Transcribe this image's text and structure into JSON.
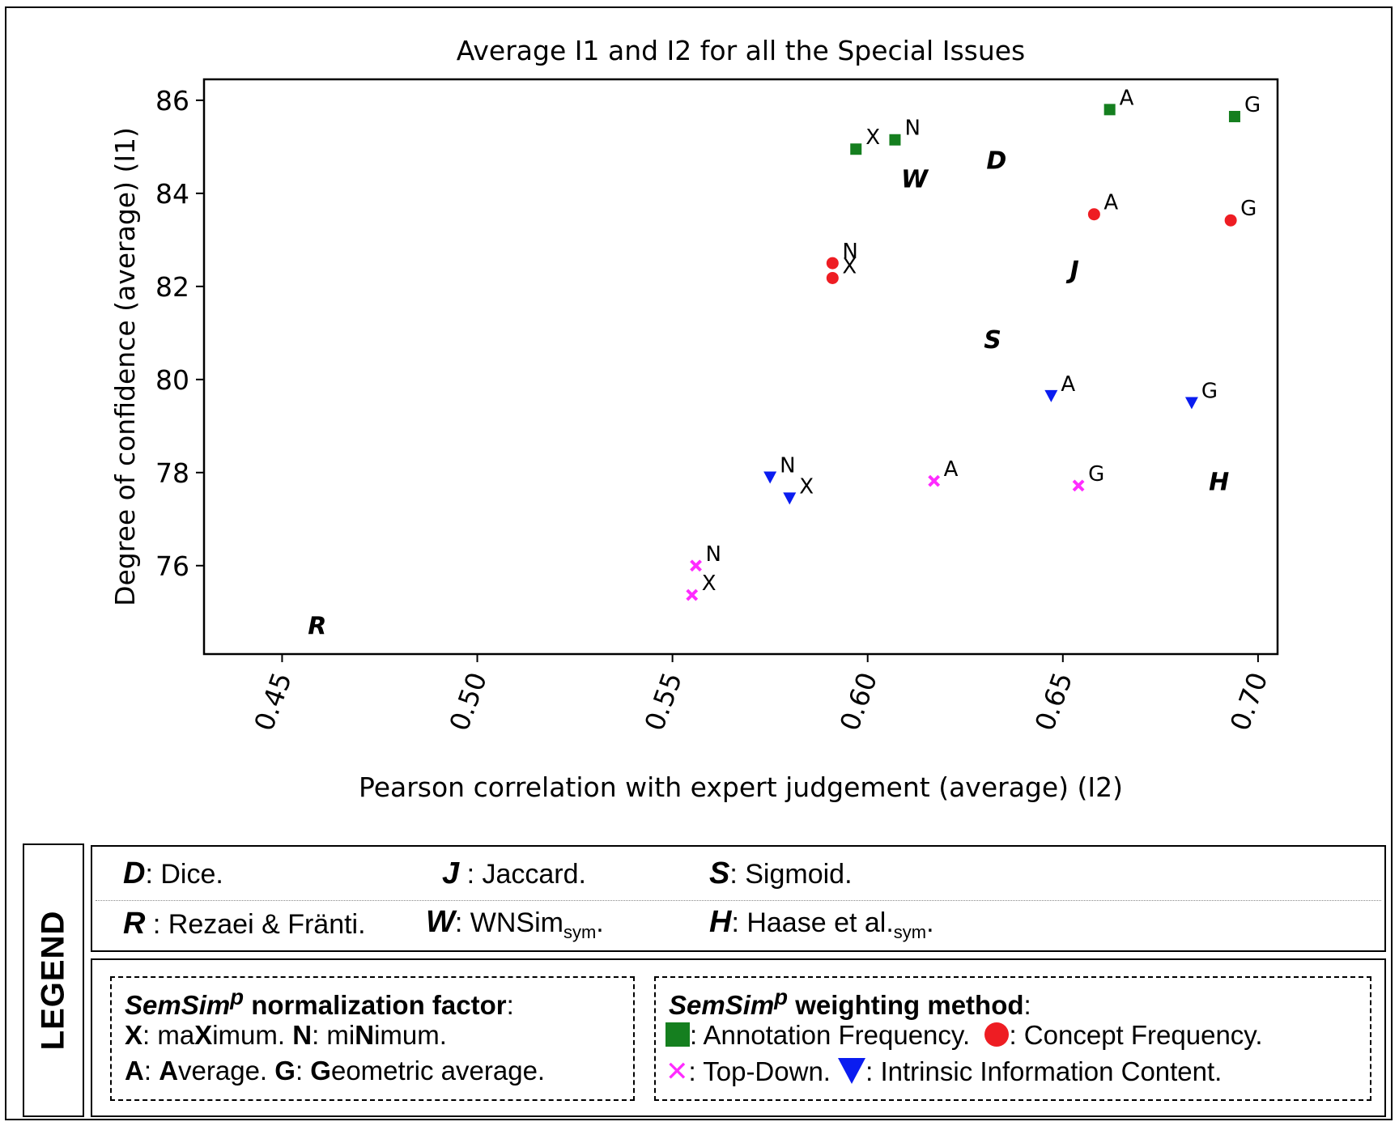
{
  "chart_data": {
    "type": "scatter",
    "title": "Average I1 and I2 for all the Special Issues",
    "xlabel": "Pearson correlation with expert judgement (average) (I2)",
    "ylabel": "Degree of confidence (average) (I1)",
    "xlim": [
      0.43,
      0.705
    ],
    "ylim": [
      74.1,
      86.45
    ],
    "xticks": [
      "0.45",
      "0.50",
      "0.55",
      "0.60",
      "0.65",
      "0.70"
    ],
    "xtick_values": [
      0.45,
      0.5,
      0.55,
      0.6,
      0.65,
      0.7
    ],
    "yticks": [
      "76",
      "78",
      "80",
      "82",
      "84",
      "86"
    ],
    "ytick_values": [
      76,
      78,
      80,
      82,
      84,
      86
    ],
    "grid": false,
    "series": [
      {
        "name": "Annotation Frequency",
        "marker": "square",
        "color": "#157f1f",
        "points": [
          {
            "x": 0.597,
            "y": 84.95,
            "label": "X"
          },
          {
            "x": 0.607,
            "y": 85.15,
            "label": "N"
          },
          {
            "x": 0.662,
            "y": 85.8,
            "label": "A"
          },
          {
            "x": 0.694,
            "y": 85.65,
            "label": "G"
          }
        ]
      },
      {
        "name": "Concept Frequency",
        "marker": "circle",
        "color": "#ee1d23",
        "points": [
          {
            "x": 0.591,
            "y": 82.5,
            "label": "N"
          },
          {
            "x": 0.591,
            "y": 82.18,
            "label": "X"
          },
          {
            "x": 0.658,
            "y": 83.55,
            "label": "A"
          },
          {
            "x": 0.693,
            "y": 83.42,
            "label": "G"
          }
        ]
      },
      {
        "name": "Intrinsic Information Content",
        "marker": "triangle-down",
        "color": "#0a1cf0",
        "points": [
          {
            "x": 0.575,
            "y": 77.9,
            "label": "N"
          },
          {
            "x": 0.58,
            "y": 77.45,
            "label": "X"
          },
          {
            "x": 0.647,
            "y": 79.65,
            "label": "A"
          },
          {
            "x": 0.683,
            "y": 79.5,
            "label": "G"
          }
        ]
      },
      {
        "name": "Top-Down",
        "marker": "x",
        "color": "#ff2bff",
        "points": [
          {
            "x": 0.556,
            "y": 76.0,
            "label": "N"
          },
          {
            "x": 0.555,
            "y": 75.37,
            "label": "X"
          },
          {
            "x": 0.617,
            "y": 77.82,
            "label": "A"
          },
          {
            "x": 0.654,
            "y": 77.72,
            "label": "G"
          }
        ]
      }
    ],
    "letter_points": [
      {
        "x": 0.633,
        "y": 84.7,
        "label": "D"
      },
      {
        "x": 0.612,
        "y": 84.3,
        "label": "W"
      },
      {
        "x": 0.653,
        "y": 82.35,
        "label": "J"
      },
      {
        "x": 0.632,
        "y": 80.85,
        "label": "S"
      },
      {
        "x": 0.69,
        "y": 77.8,
        "label": "H"
      },
      {
        "x": 0.459,
        "y": 74.7,
        "label": "R"
      }
    ]
  },
  "legend": {
    "title": "LEGEND",
    "abbreviations": {
      "d_key": "D",
      "d_text": ": Dice.",
      "j_key": "J",
      "j_text": ": Jaccard.",
      "s_key": "S",
      "s_text": ": Sigmoid.",
      "r_key": "R",
      "r_text": ": Rezaei & Fränti.",
      "w_key": "W",
      "w_text": ": WNSim",
      "w_sub": "sym",
      "w_end": ".",
      "h_key": "H",
      "h_text": ": Haase et al.",
      "h_sub": "sym",
      "h_end": "."
    },
    "normalization": {
      "title_name": "SemSim",
      "title_sup": "p",
      "title_rest": " normalization factor",
      "title_colon": ":",
      "x_key": "X",
      "x_text_1": ": ma",
      "x_bold": "X",
      "x_text_2": "imum. ",
      "n_key": "N",
      "n_text_1": ": mi",
      "n_bold": "N",
      "n_text_2": "imum.",
      "a_key": "A",
      "a_text_1": ": ",
      "a_bold": "A",
      "a_text_2": "verage. ",
      "g_key": "G",
      "g_text_1": ": ",
      "g_bold": "G",
      "g_text_2": "eometric average."
    },
    "weighting": {
      "title_name": "SemSim",
      "title_sup": "p",
      "title_rest": " weighting method",
      "title_colon": ":",
      "annotation": ": Annotation Frequency.",
      "concept": ": Concept Frequency.",
      "topdown": ": Top-Down.",
      "intrinsic": ": Intrinsic Information Content."
    }
  }
}
